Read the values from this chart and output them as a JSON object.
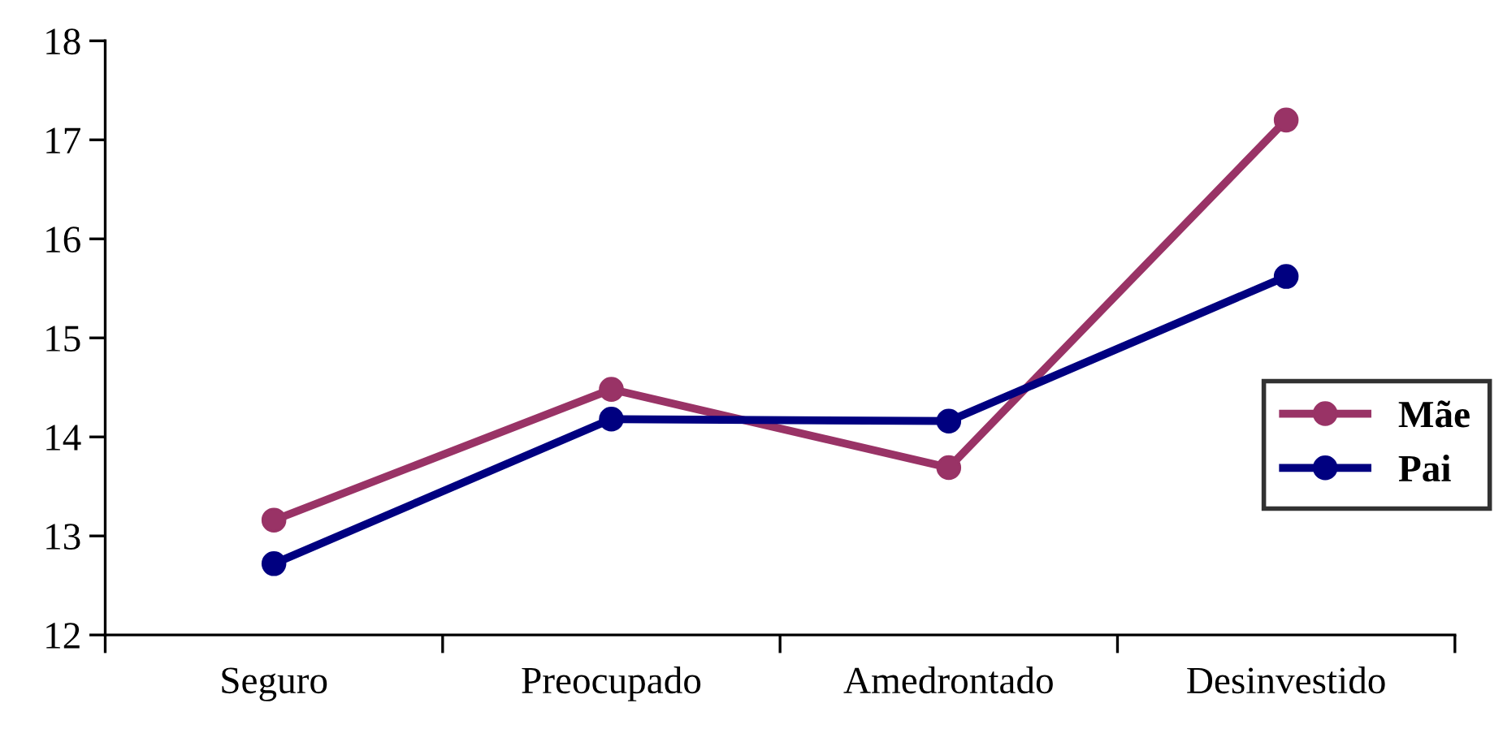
{
  "chart_data": {
    "type": "line",
    "categories": [
      "Seguro",
      "Preocupado",
      "Amedrontado",
      "Desinvestido"
    ],
    "series": [
      {
        "name": "Mãe",
        "color": "#993366",
        "values": [
          13.16,
          14.48,
          13.69,
          17.2
        ]
      },
      {
        "name": "Pai",
        "color": "#000080",
        "values": [
          12.72,
          14.18,
          14.16,
          15.62
        ]
      }
    ],
    "ylim": [
      12,
      18
    ],
    "yticks": [
      12,
      13,
      14,
      15,
      16,
      17,
      18
    ],
    "marker": "circle",
    "line_style": "solid",
    "grid": false,
    "legend": "right"
  }
}
